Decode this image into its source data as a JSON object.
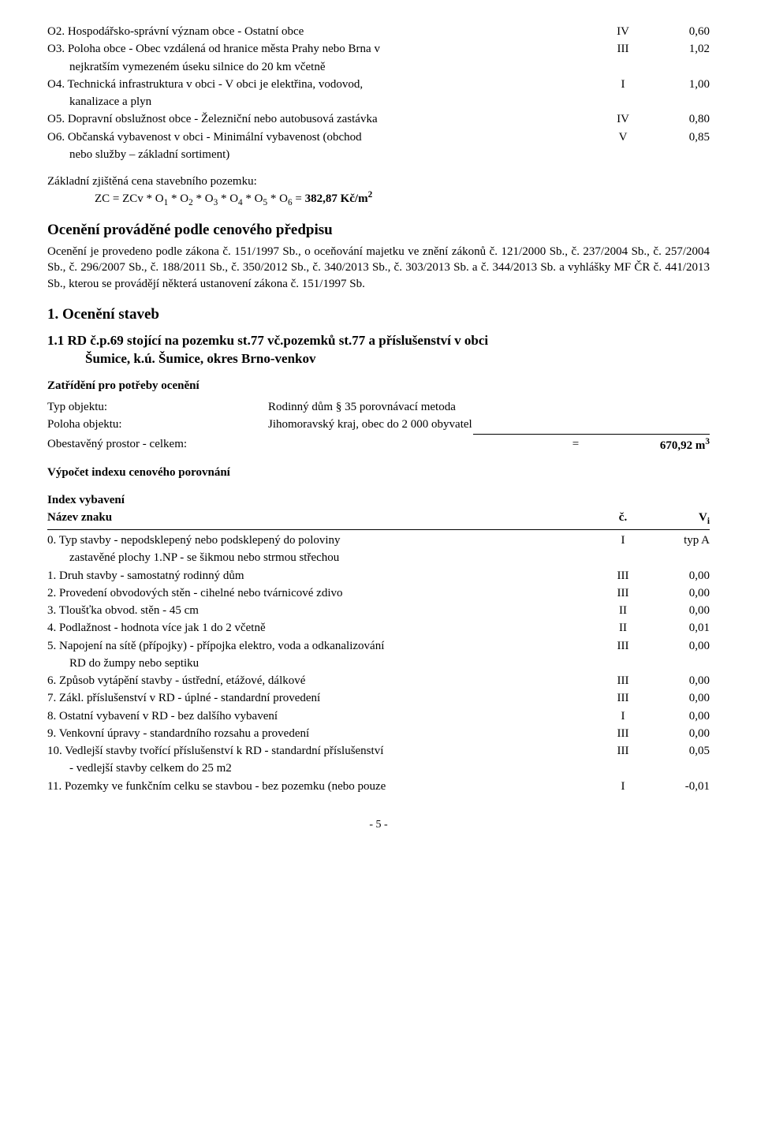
{
  "o_rows": [
    {
      "label": "O2. Hospodářsko-správní význam obce - Ostatní obce",
      "num": "IV",
      "val": "0,60",
      "indent": false
    },
    {
      "label": "O3. Poloha obce - Obec vzdálená od hranice města Prahy nebo Brna v",
      "num": "III",
      "val": "1,02",
      "indent": false
    },
    {
      "label": "nejkratším vymezeném úseku silnice do 20 km včetně",
      "num": "",
      "val": "",
      "indent": true
    },
    {
      "label": "O4. Technická infrastruktura v obci - V obci je elektřina, vodovod,",
      "num": "I",
      "val": "1,00",
      "indent": false
    },
    {
      "label": "kanalizace a plyn",
      "num": "",
      "val": "",
      "indent": true
    },
    {
      "label": "O5. Dopravní obslužnost obce - Železniční nebo autobusová zastávka",
      "num": "IV",
      "val": "0,80",
      "indent": false
    },
    {
      "label": "O6. Občanská vybavenost v obci - Minimální vybavenost (obchod",
      "num": "V",
      "val": "0,85",
      "indent": false
    },
    {
      "label": "nebo služby – základní sortiment)",
      "num": "",
      "val": "",
      "indent": true
    }
  ],
  "zc_title": "Základní zjištěná cena stavebního pozemku:",
  "zc_formula_prefix": "ZC = ZCv * O",
  "zc_formula_html": "ZC = ZCv * O<sub>1</sub> * O<sub>2</sub> * O<sub>3</sub> * O<sub>4</sub> * O<sub>5</sub> * O<sub>6</sub> = ",
  "zc_result": "382,87 Kč/m²",
  "oceneni_heading": "Ocenění prováděné podle cenového předpisu",
  "oceneni_para": "Ocenění je provedeno podle zákona č. 151/1997 Sb., o oceňování majetku ve znění zákonů č. 121/2000 Sb., č. 237/2004 Sb., č. 257/2004 Sb., č. 296/2007 Sb., č. 188/2011 Sb., č. 350/2012 Sb., č. 340/2013 Sb., č. 303/2013 Sb. a č. 344/2013 Sb. a vyhlášky MF ČR č. 441/2013 Sb., kterou se provádějí některá ustanovení zákona č. 151/1997 Sb.",
  "sec1_title": "1. Ocenění staveb",
  "rd_title_l1": "1.1 RD č.p.69   stojící na pozemku st.77 vč.pozemků st.77 a příslušenství v obci",
  "rd_title_l2": "Šumice, k.ú. Šumice, okres Brno-venkov",
  "zatrideni_title": "Zatřídění pro potřeby ocenění",
  "typ_label": "Typ objektu:",
  "typ_value": "Rodinný dům § 35 porovnávací metoda",
  "poloha_label": "Poloha objektu:",
  "poloha_value": "Jihomoravský kraj, obec do 2 000 obyvatel",
  "obest_label": "Obestavěný prostor - celkem:",
  "obest_eq": "=",
  "obest_val": "670,92 m³",
  "vypocet_title": "Výpočet indexu cenového porovnání",
  "index_vyb_title": "Index vybavení",
  "tbl_header": {
    "label": "Název znaku",
    "num": "č.",
    "val": "Vᵢ"
  },
  "v_rows": [
    {
      "label": "0. Typ stavby - nepodsklepený nebo podsklepený do poloviny",
      "num": "I",
      "val": "typ A",
      "indent": false
    },
    {
      "label": "zastavěné plochy 1.NP - se šikmou nebo strmou střechou",
      "num": "",
      "val": "",
      "indent": true
    },
    {
      "label": "1. Druh stavby - samostatný rodinný dům",
      "num": "III",
      "val": "0,00",
      "indent": false
    },
    {
      "label": "2. Provedení obvodových stěn - cihelné nebo tvárnicové zdivo",
      "num": "III",
      "val": "0,00",
      "indent": false
    },
    {
      "label": "3. Tloušťka obvod. stěn - 45 cm",
      "num": "II",
      "val": "0,00",
      "indent": false
    },
    {
      "label": "4. Podlažnost - hodnota více jak 1 do 2 včetně",
      "num": "II",
      "val": "0,01",
      "indent": false
    },
    {
      "label": "5. Napojení na sítě (přípojky) - přípojka elektro, voda a odkanalizování",
      "num": "III",
      "val": "0,00",
      "indent": false
    },
    {
      "label": "RD do žumpy nebo septiku",
      "num": "",
      "val": "",
      "indent": true
    },
    {
      "label": "6. Způsob vytápění stavby - ústřední, etážové, dálkové",
      "num": "III",
      "val": "0,00",
      "indent": false
    },
    {
      "label": "7. Zákl. příslušenství v RD - úplné - standardní provedení",
      "num": "III",
      "val": "0,00",
      "indent": false
    },
    {
      "label": "8. Ostatní vybavení v RD - bez dalšího vybavení",
      "num": "I",
      "val": "0,00",
      "indent": false
    },
    {
      "label": "9. Venkovní úpravy - standardního rozsahu a provedení",
      "num": "III",
      "val": "0,00",
      "indent": false
    },
    {
      "label": "10. Vedlejší stavby tvořící příslušenství k RD - standardní příslušenství",
      "num": "III",
      "val": "0,05",
      "indent": false
    },
    {
      "label": "- vedlejší stavby celkem do 25 m2",
      "num": "",
      "val": "",
      "indent": true
    },
    {
      "label": "11. Pozemky ve funkčním celku se stavbou - bez pozemku (nebo pouze",
      "num": "I",
      "val": "-0,01",
      "indent": false
    }
  ],
  "page_num": "- 5 -"
}
